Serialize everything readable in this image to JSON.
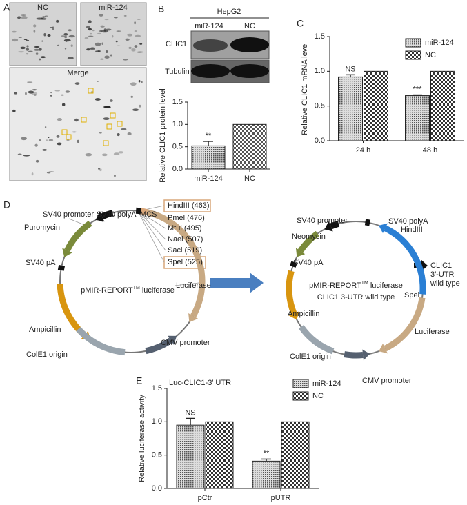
{
  "panel_labels": {
    "a": "A",
    "b": "B",
    "c": "C",
    "d": "D",
    "e": "E"
  },
  "gels": {
    "nc": "NC",
    "mir": "miR-124",
    "merge": "Merge"
  },
  "blot": {
    "cell_line": "HepG2",
    "lanes": [
      "miR-124",
      "NC"
    ],
    "rows": [
      "CLIC1",
      "Tubulin"
    ]
  },
  "plasmids": [
    {
      "name": [
        "pMIR-REPORT",
        "TM",
        "luciferase"
      ],
      "labels": [
        "SV40 promoter",
        "SV40 polyA",
        "MCS",
        "HindIII (463)",
        "Pmel (476)",
        "Mtul (495)",
        "Nael (507)",
        "Sacl (519)",
        "Spel (525)",
        "Puromycin",
        "SV40 pA",
        "Luciferase",
        "Ampicillin",
        "CMV promoter",
        "ColE1 origin"
      ]
    },
    {
      "name": [
        "pMIR-REPORT",
        "TM",
        "luciferase"
      ],
      "subtitle": "CLIC1 3-UTR wild type",
      "labels": [
        "SV40 promoter",
        "SV40 polyA",
        "HindIII",
        "Neomycin",
        "CLIC1",
        "3′-UTR",
        "wild type",
        "SV40 pA",
        "Spel",
        "Ampicillin",
        "Luciferase",
        "ColE1 origin",
        "CMV promoter"
      ]
    }
  ],
  "chart_data": [
    {
      "type": "bar",
      "ylabel": "Relative CLIC1 protein level",
      "categories": [
        "miR-124",
        "NC"
      ],
      "values": [
        0.52,
        1.0
      ],
      "errors": [
        0.1,
        0
      ],
      "significance": [
        "**",
        null
      ],
      "color": "#555555",
      "fills": [
        "dotted",
        "checkered"
      ],
      "ylim": [
        0,
        1.5
      ],
      "yticks": [
        {
          "value": 0,
          "label": "0.0"
        },
        0.5,
        {
          "value": 1,
          "label": "1.0"
        },
        1.5
      ]
    },
    {
      "type": "bar",
      "ylabel": "Relative CLIC1 mRNA level",
      "categories": [
        "24 h",
        "48 h"
      ],
      "series": [
        {
          "name": "miR-124",
          "color": "#555555",
          "fill": "dotted",
          "values": [
            0.92,
            0.65
          ],
          "errors": [
            0.03,
            0.01
          ],
          "significance": [
            "NS",
            "***"
          ]
        },
        {
          "name": "NC",
          "color": "#333333",
          "fill": "checkered",
          "values": [
            1.0,
            1.0
          ]
        }
      ],
      "ylim": [
        0,
        1.5
      ],
      "yticks": [
        {
          "value": 0,
          "label": "0.0"
        },
        0.5,
        {
          "value": 1,
          "label": "1.0"
        },
        1.5
      ],
      "legend": "upper right"
    },
    {
      "type": "bar",
      "title": "Luc-CLIC1-3′ UTR",
      "ylabel": "Relative luciferase activity",
      "categories": [
        "pCtr",
        "pUTR"
      ],
      "series": [
        {
          "name": "miR-124",
          "color": "#555555",
          "fill": "dotted",
          "values": [
            0.95,
            0.41
          ],
          "errors": [
            0.1,
            0.03
          ],
          "significance": [
            "NS",
            "**"
          ]
        },
        {
          "name": "NC",
          "color": "#333333",
          "fill": "checkered",
          "values": [
            1.0,
            1.0
          ]
        }
      ],
      "ylim": [
        0,
        1.5
      ],
      "yticks": [
        {
          "value": 0,
          "label": "0.0"
        },
        0.5,
        {
          "value": 1,
          "label": "1.0"
        },
        1.5
      ],
      "legend": "upper right"
    }
  ]
}
